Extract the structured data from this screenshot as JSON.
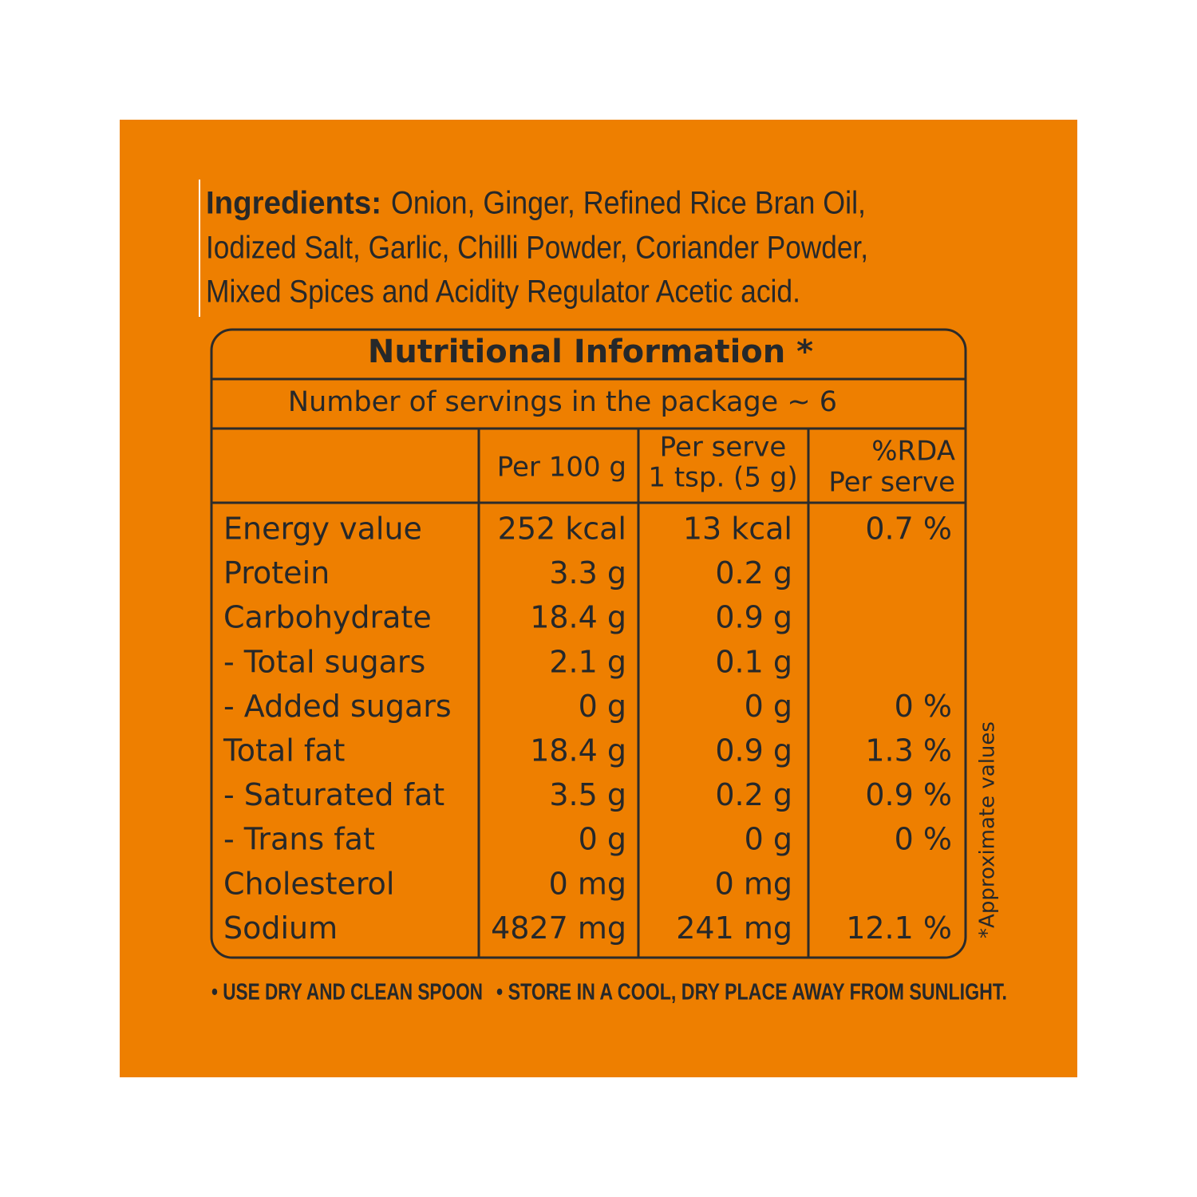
{
  "ingredients": {
    "label": "Ingredients:",
    "lines": [
      "Onion, Ginger, Refined Rice Bran Oil,",
      "Iodized Salt, Garlic, Chilli Powder, Coriander Powder,",
      "Mixed Spices and Acidity Regulator  Acetic acid."
    ]
  },
  "table": {
    "title": "Nutritional Information *",
    "servings": "Number of servings in the package ~ 6",
    "columns": [
      [
        "Per 100 g"
      ],
      [
        "Per serve",
        "1 tsp. (5 g)"
      ],
      [
        "%RDA",
        "Per serve"
      ]
    ],
    "rows": [
      [
        "Energy value",
        "252 kcal",
        "13 kcal",
        "0.7 %"
      ],
      [
        "Protein",
        "3.3 g",
        "0.2 g"
      ],
      [
        "Carbohydrate",
        "18.4 g",
        "0.9 g"
      ],
      [
        "- Total sugars",
        "2.1 g",
        "0.1 g"
      ],
      [
        "- Added sugars",
        "0 g",
        "0 g",
        "0 %"
      ],
      [
        "Total fat",
        "18.4 g",
        "0.9 g",
        "1.3 %"
      ],
      [
        "- Saturated fat",
        "3.5 g",
        "0.2 g",
        "0.9 %"
      ],
      [
        "- Trans fat",
        "0 g",
        "0 g",
        "0 %"
      ],
      [
        "Cholesterol",
        "0 mg",
        "0 mg"
      ],
      [
        "Sodium",
        "4827 mg",
        "241 mg",
        "12.1 %"
      ]
    ]
  },
  "side_note": "*Approximate values",
  "footer": [
    "• USE DRY AND CLEAN SPOON",
    "• STORE IN A COOL, DRY PLACE AWAY FROM SUNLIGHT."
  ]
}
